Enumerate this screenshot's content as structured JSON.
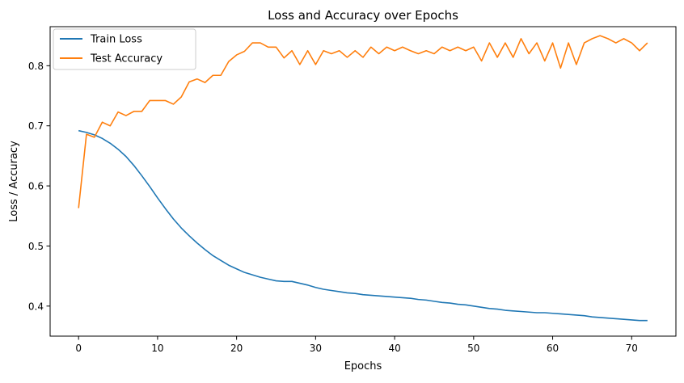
{
  "chart_data": {
    "type": "line",
    "title": "Loss and Accuracy over Epochs",
    "xlabel": "Epochs",
    "ylabel": "Loss / Accuracy",
    "xlim": [
      -3.6,
      75.6
    ],
    "ylim": [
      0.35,
      0.865
    ],
    "xticks": [
      "0",
      "10",
      "20",
      "30",
      "40",
      "50",
      "60",
      "70"
    ],
    "yticks": [
      "0.4",
      "0.5",
      "0.6",
      "0.7",
      "0.8"
    ],
    "grid": false,
    "legend_position": "top-left",
    "x": [
      0,
      1,
      2,
      3,
      4,
      5,
      6,
      7,
      8,
      9,
      10,
      11,
      12,
      13,
      14,
      15,
      16,
      17,
      18,
      19,
      20,
      21,
      22,
      23,
      24,
      25,
      26,
      27,
      28,
      29,
      30,
      31,
      32,
      33,
      34,
      35,
      36,
      37,
      38,
      39,
      40,
      41,
      42,
      43,
      44,
      45,
      46,
      47,
      48,
      49,
      50,
      51,
      52,
      53,
      54,
      55,
      56,
      57,
      58,
      59,
      60,
      61,
      62,
      63,
      64,
      65,
      66,
      67,
      68,
      69,
      70,
      71,
      72
    ],
    "series": [
      {
        "name": "Train Loss",
        "color": "#1f77b4",
        "values": [
          0.692,
          0.689,
          0.685,
          0.679,
          0.671,
          0.661,
          0.649,
          0.634,
          0.617,
          0.599,
          0.58,
          0.562,
          0.545,
          0.53,
          0.517,
          0.505,
          0.494,
          0.484,
          0.476,
          0.468,
          0.462,
          0.456,
          0.452,
          0.448,
          0.445,
          0.442,
          0.441,
          0.441,
          0.438,
          0.435,
          0.431,
          0.428,
          0.426,
          0.424,
          0.422,
          0.421,
          0.419,
          0.418,
          0.417,
          0.416,
          0.415,
          0.414,
          0.413,
          0.411,
          0.41,
          0.408,
          0.406,
          0.405,
          0.403,
          0.402,
          0.4,
          0.398,
          0.396,
          0.395,
          0.393,
          0.392,
          0.391,
          0.39,
          0.389,
          0.389,
          0.388,
          0.387,
          0.386,
          0.385,
          0.384,
          0.382,
          0.381,
          0.38,
          0.379,
          0.378,
          0.377,
          0.376,
          0.376
        ]
      },
      {
        "name": "Test Accuracy",
        "color": "#ff7f0e",
        "values": [
          0.563,
          0.686,
          0.681,
          0.706,
          0.7,
          0.723,
          0.717,
          0.724,
          0.724,
          0.742,
          0.742,
          0.742,
          0.736,
          0.748,
          0.773,
          0.778,
          0.772,
          0.784,
          0.784,
          0.807,
          0.818,
          0.824,
          0.838,
          0.838,
          0.831,
          0.831,
          0.813,
          0.825,
          0.802,
          0.825,
          0.802,
          0.825,
          0.82,
          0.825,
          0.814,
          0.825,
          0.814,
          0.831,
          0.82,
          0.831,
          0.825,
          0.831,
          0.825,
          0.82,
          0.825,
          0.82,
          0.831,
          0.825,
          0.831,
          0.825,
          0.831,
          0.808,
          0.838,
          0.814,
          0.838,
          0.814,
          0.845,
          0.82,
          0.838,
          0.808,
          0.838,
          0.796,
          0.838,
          0.802,
          0.838,
          0.845,
          0.85,
          0.845,
          0.838,
          0.845,
          0.838,
          0.825,
          0.838
        ]
      }
    ]
  }
}
